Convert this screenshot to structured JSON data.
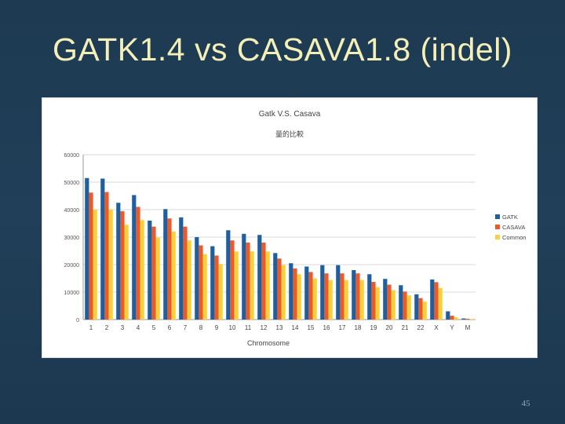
{
  "slide": {
    "title": "GATK1.4 vs CASAVA1.8 (indel)",
    "page_number": "45"
  },
  "chart_data": {
    "type": "bar",
    "title": "Gatk V.S. Casava",
    "subtitle": "量的比較",
    "xlabel": "Chromosome",
    "ylabel": "",
    "ylim": [
      0,
      60000
    ],
    "yticks": [
      0,
      10000,
      20000,
      30000,
      40000,
      50000,
      60000
    ],
    "grid": true,
    "legend_position": "right",
    "categories": [
      "1",
      "2",
      "3",
      "4",
      "5",
      "6",
      "7",
      "8",
      "9",
      "10",
      "11",
      "12",
      "13",
      "14",
      "15",
      "16",
      "17",
      "18",
      "19",
      "20",
      "21",
      "22",
      "X",
      "Y",
      "M"
    ],
    "series": [
      {
        "name": "GATK",
        "color": "#1f5f9e",
        "values": [
          51500,
          51300,
          42500,
          45300,
          36000,
          40200,
          37200,
          30000,
          26700,
          32500,
          31200,
          30800,
          24200,
          20500,
          19300,
          19800,
          19800,
          18000,
          16500,
          14800,
          12500,
          9200,
          14600,
          3000,
          400
        ]
      },
      {
        "name": "CASAVA",
        "color": "#ec5a2a",
        "values": [
          46200,
          46400,
          39400,
          41000,
          33800,
          36800,
          33800,
          27000,
          23300,
          28800,
          28000,
          28000,
          22200,
          18600,
          17300,
          16800,
          16800,
          16800,
          13700,
          12700,
          10200,
          7800,
          13600,
          1400,
          300
        ]
      },
      {
        "name": "Common",
        "color": "#f8d23a",
        "values": [
          40000,
          40000,
          34500,
          36200,
          29800,
          32000,
          28800,
          23800,
          20200,
          24800,
          24800,
          24800,
          19800,
          16500,
          15000,
          14400,
          14400,
          14400,
          11800,
          10700,
          8800,
          6500,
          11500,
          800,
          200
        ]
      }
    ]
  }
}
